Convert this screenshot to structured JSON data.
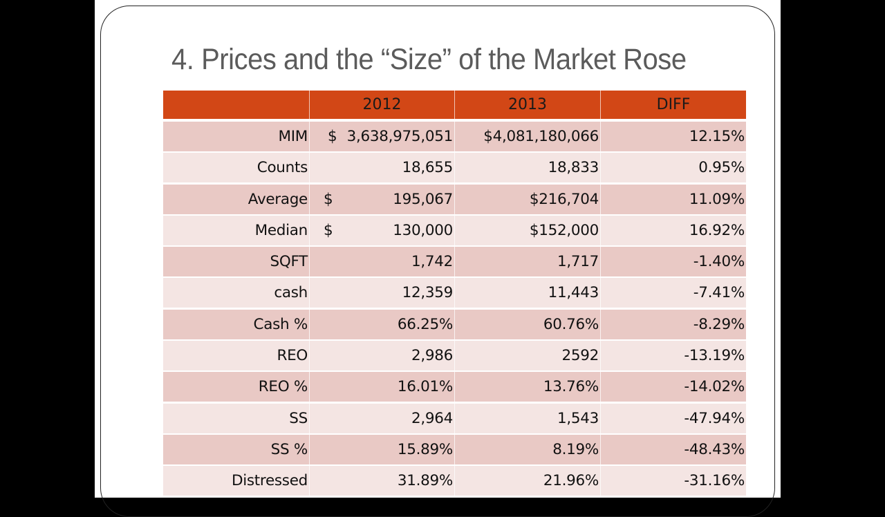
{
  "slide": {
    "title": "4. Prices and the “Size” of the Market Rose"
  },
  "table": {
    "headers": [
      "",
      "2012",
      "2013",
      "DIFF"
    ],
    "rows": [
      {
        "label": "MIM",
        "y2012_currency": "$",
        "y2012": "3,638,975,051",
        "y2013": "$4,081,180,066",
        "diff": "12.15%",
        "cur_style": "tight"
      },
      {
        "label": "Counts",
        "y2012_currency": "",
        "y2012": "18,655",
        "y2013": "18,833",
        "diff": "0.95%"
      },
      {
        "label": "Average",
        "y2012_currency": "$",
        "y2012": "195,067",
        "y2013": "$216,704",
        "diff": "11.09%"
      },
      {
        "label": "Median",
        "y2012_currency": "$",
        "y2012": "130,000",
        "y2013": "$152,000",
        "diff": "16.92%"
      },
      {
        "label": "SQFT",
        "y2012_currency": "",
        "y2012": "1,742",
        "y2013": "1,717",
        "diff": "-1.40%"
      },
      {
        "label": "cash",
        "y2012_currency": "",
        "y2012": "12,359",
        "y2013": "11,443",
        "diff": "-7.41%"
      },
      {
        "label": "Cash %",
        "y2012_currency": "",
        "y2012": "66.25%",
        "y2013": "60.76%",
        "diff": "-8.29%"
      },
      {
        "label": "REO",
        "y2012_currency": "",
        "y2012": "2,986",
        "y2013": "2592",
        "diff": "-13.19%"
      },
      {
        "label": "REO %",
        "y2012_currency": "",
        "y2012": "16.01%",
        "y2013": "13.76%",
        "diff": "-14.02%"
      },
      {
        "label": "SS",
        "y2012_currency": "",
        "y2012": "2,964",
        "y2013": "1,543",
        "diff": "-47.94%"
      },
      {
        "label": "SS %",
        "y2012_currency": "",
        "y2012": "15.89%",
        "y2013": "8.19%",
        "diff": "-48.43%"
      },
      {
        "label": "Distressed",
        "y2012_currency": "",
        "y2012": "31.89%",
        "y2013": "21.96%",
        "diff": "-31.16%"
      }
    ]
  },
  "colors": {
    "header_bg": "#d24716",
    "row_dark": "#e9c9c5",
    "row_light": "#f4e5e3",
    "title_text": "#5b5b5b",
    "letterbox": "#000000"
  }
}
